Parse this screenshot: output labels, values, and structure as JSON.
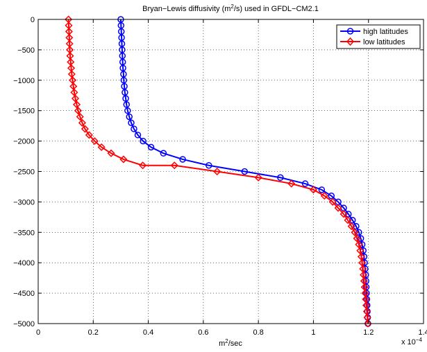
{
  "chart_data": {
    "type": "line",
    "title": {
      "pre": "Bryan−Lewis diffusivity (m",
      "sup": "2",
      "post": "/s) used in GFDL−CM2.1"
    },
    "xlabel": {
      "pre": "m",
      "sup": "2",
      "post": "/sec"
    },
    "ylabel": "",
    "x_exponent_label": {
      "pre": "x 10",
      "sup": "−4"
    },
    "xlim": [
      0,
      1.4
    ],
    "ylim": [
      -5000,
      0
    ],
    "x_ticks": [
      0,
      0.2,
      0.4,
      0.6,
      0.8,
      1,
      1.2,
      1.4
    ],
    "x_tick_labels": [
      "0",
      "0.2",
      "0.4",
      "0.6",
      "0.8",
      "1",
      "1.2",
      "1.4"
    ],
    "y_ticks": [
      0,
      -500,
      -1000,
      -1500,
      -2000,
      -2500,
      -3000,
      -3500,
      -4000,
      -4500,
      -5000
    ],
    "y_tick_labels": [
      "0",
      "−500",
      "−1000",
      "−1500",
      "−2000",
      "−2500",
      "−3000",
      "−3500",
      "−4000",
      "−4500",
      "−5000"
    ],
    "grid": true,
    "legend_position": "top-right",
    "series": [
      {
        "name": "high latitudes",
        "color": "#0000ff",
        "marker": "circle",
        "points": [
          [
            0.3,
            0
          ],
          [
            0.301,
            -100
          ],
          [
            0.302,
            -200
          ],
          [
            0.303,
            -300
          ],
          [
            0.304,
            -400
          ],
          [
            0.305,
            -500
          ],
          [
            0.306,
            -600
          ],
          [
            0.307,
            -700
          ],
          [
            0.308,
            -800
          ],
          [
            0.31,
            -900
          ],
          [
            0.311,
            -1000
          ],
          [
            0.313,
            -1100
          ],
          [
            0.315,
            -1200
          ],
          [
            0.318,
            -1300
          ],
          [
            0.321,
            -1400
          ],
          [
            0.325,
            -1500
          ],
          [
            0.331,
            -1600
          ],
          [
            0.338,
            -1700
          ],
          [
            0.348,
            -1800
          ],
          [
            0.362,
            -1900
          ],
          [
            0.381,
            -2000
          ],
          [
            0.41,
            -2100
          ],
          [
            0.455,
            -2200
          ],
          [
            0.525,
            -2300
          ],
          [
            0.62,
            -2400
          ],
          [
            0.75,
            -2500
          ],
          [
            0.88,
            -2600
          ],
          [
            0.97,
            -2700
          ],
          [
            1.03,
            -2800
          ],
          [
            1.065,
            -2900
          ],
          [
            1.09,
            -3000
          ],
          [
            1.11,
            -3100
          ],
          [
            1.127,
            -3200
          ],
          [
            1.142,
            -3300
          ],
          [
            1.155,
            -3400
          ],
          [
            1.165,
            -3500
          ],
          [
            1.172,
            -3600
          ],
          [
            1.177,
            -3700
          ],
          [
            1.181,
            -3800
          ],
          [
            1.184,
            -3900
          ],
          [
            1.186,
            -4000
          ],
          [
            1.188,
            -4100
          ],
          [
            1.19,
            -4200
          ],
          [
            1.191,
            -4300
          ],
          [
            1.192,
            -4400
          ],
          [
            1.193,
            -4500
          ],
          [
            1.194,
            -4600
          ],
          [
            1.195,
            -4700
          ],
          [
            1.196,
            -4800
          ],
          [
            1.197,
            -4900
          ],
          [
            1.198,
            -5000
          ]
        ]
      },
      {
        "name": "low latitudes",
        "color": "#ff0000",
        "marker": "diamond",
        "points": [
          [
            0.11,
            0
          ],
          [
            0.111,
            -100
          ],
          [
            0.112,
            -200
          ],
          [
            0.113,
            -300
          ],
          [
            0.114,
            -400
          ],
          [
            0.115,
            -500
          ],
          [
            0.116,
            -600
          ],
          [
            0.118,
            -700
          ],
          [
            0.12,
            -800
          ],
          [
            0.122,
            -900
          ],
          [
            0.125,
            -1000
          ],
          [
            0.128,
            -1100
          ],
          [
            0.131,
            -1200
          ],
          [
            0.135,
            -1300
          ],
          [
            0.14,
            -1400
          ],
          [
            0.145,
            -1500
          ],
          [
            0.152,
            -1600
          ],
          [
            0.16,
            -1700
          ],
          [
            0.17,
            -1800
          ],
          [
            0.185,
            -1900
          ],
          [
            0.205,
            -2000
          ],
          [
            0.23,
            -2100
          ],
          [
            0.265,
            -2200
          ],
          [
            0.31,
            -2300
          ],
          [
            0.38,
            -2400
          ],
          [
            0.495,
            -2400
          ],
          [
            0.65,
            -2500
          ],
          [
            0.8,
            -2600
          ],
          [
            0.92,
            -2700
          ],
          [
            1.0,
            -2800
          ],
          [
            1.04,
            -2900
          ],
          [
            1.07,
            -3000
          ],
          [
            1.09,
            -3100
          ],
          [
            1.11,
            -3200
          ],
          [
            1.125,
            -3300
          ],
          [
            1.138,
            -3400
          ],
          [
            1.15,
            -3500
          ],
          [
            1.158,
            -3600
          ],
          [
            1.165,
            -3700
          ],
          [
            1.17,
            -3800
          ],
          [
            1.174,
            -3900
          ],
          [
            1.177,
            -4000
          ],
          [
            1.18,
            -4100
          ],
          [
            1.182,
            -4200
          ],
          [
            1.184,
            -4300
          ],
          [
            1.186,
            -4400
          ],
          [
            1.188,
            -4500
          ],
          [
            1.19,
            -4600
          ],
          [
            1.192,
            -4700
          ],
          [
            1.194,
            -4800
          ],
          [
            1.196,
            -4900
          ],
          [
            1.198,
            -5000
          ]
        ]
      }
    ]
  }
}
